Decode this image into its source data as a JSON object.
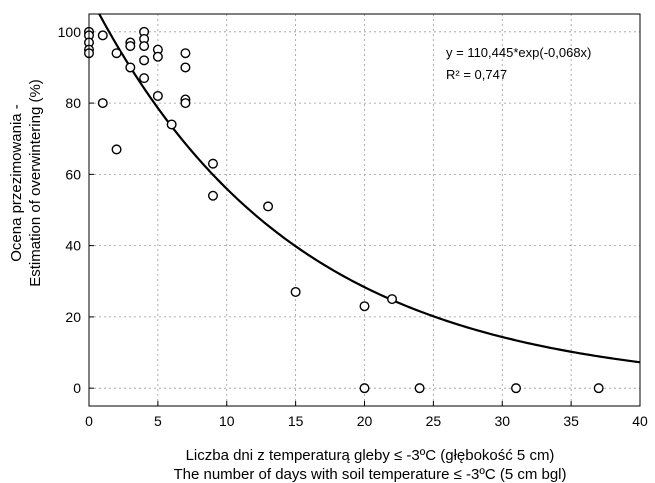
{
  "chart_data": {
    "type": "scatter",
    "xlabel": "Liczba dni z temperaturą gleby ≤ -3ºC (głębokość 5 cm)",
    "xlabel2": "The number of days with soil temperature ≤ -3ºC (5 cm bgl)",
    "ylabel": "Ocena przezimowania -",
    "ylabel2": "Estimation of overwintering (%)",
    "xlim": [
      0,
      40
    ],
    "ylim": [
      -5,
      105
    ],
    "x_ticks": [
      "0",
      "5",
      "10",
      "15",
      "20",
      "25",
      "30",
      "35",
      "40"
    ],
    "y_ticks": [
      "0",
      "20",
      "40",
      "60",
      "80",
      "100"
    ],
    "grid": true,
    "grid_style": "dotted",
    "points": [
      {
        "x": 0,
        "y": 100
      },
      {
        "x": 0,
        "y": 99
      },
      {
        "x": 0,
        "y": 97
      },
      {
        "x": 0,
        "y": 95
      },
      {
        "x": 0,
        "y": 94
      },
      {
        "x": 1,
        "y": 99
      },
      {
        "x": 1,
        "y": 80
      },
      {
        "x": 2,
        "y": 94
      },
      {
        "x": 2,
        "y": 67
      },
      {
        "x": 3,
        "y": 97
      },
      {
        "x": 3,
        "y": 96
      },
      {
        "x": 3,
        "y": 90
      },
      {
        "x": 4,
        "y": 100
      },
      {
        "x": 4,
        "y": 98
      },
      {
        "x": 4,
        "y": 96
      },
      {
        "x": 4,
        "y": 92
      },
      {
        "x": 4,
        "y": 87
      },
      {
        "x": 5,
        "y": 95
      },
      {
        "x": 5,
        "y": 93
      },
      {
        "x": 5,
        "y": 82
      },
      {
        "x": 6,
        "y": 74
      },
      {
        "x": 7,
        "y": 94
      },
      {
        "x": 7,
        "y": 90
      },
      {
        "x": 7,
        "y": 81
      },
      {
        "x": 7,
        "y": 80
      },
      {
        "x": 9,
        "y": 63
      },
      {
        "x": 9,
        "y": 54
      },
      {
        "x": 13,
        "y": 51
      },
      {
        "x": 15,
        "y": 27
      },
      {
        "x": 20,
        "y": 23
      },
      {
        "x": 20,
        "y": 0
      },
      {
        "x": 22,
        "y": 25
      },
      {
        "x": 24,
        "y": 0
      },
      {
        "x": 31,
        "y": 0
      },
      {
        "x": 37,
        "y": 0
      }
    ],
    "fit": {
      "a": 110.445,
      "b": -0.068,
      "equation": "y = 110,445*exp(-0,068x)",
      "r2_label": "R² = 0,747"
    }
  }
}
